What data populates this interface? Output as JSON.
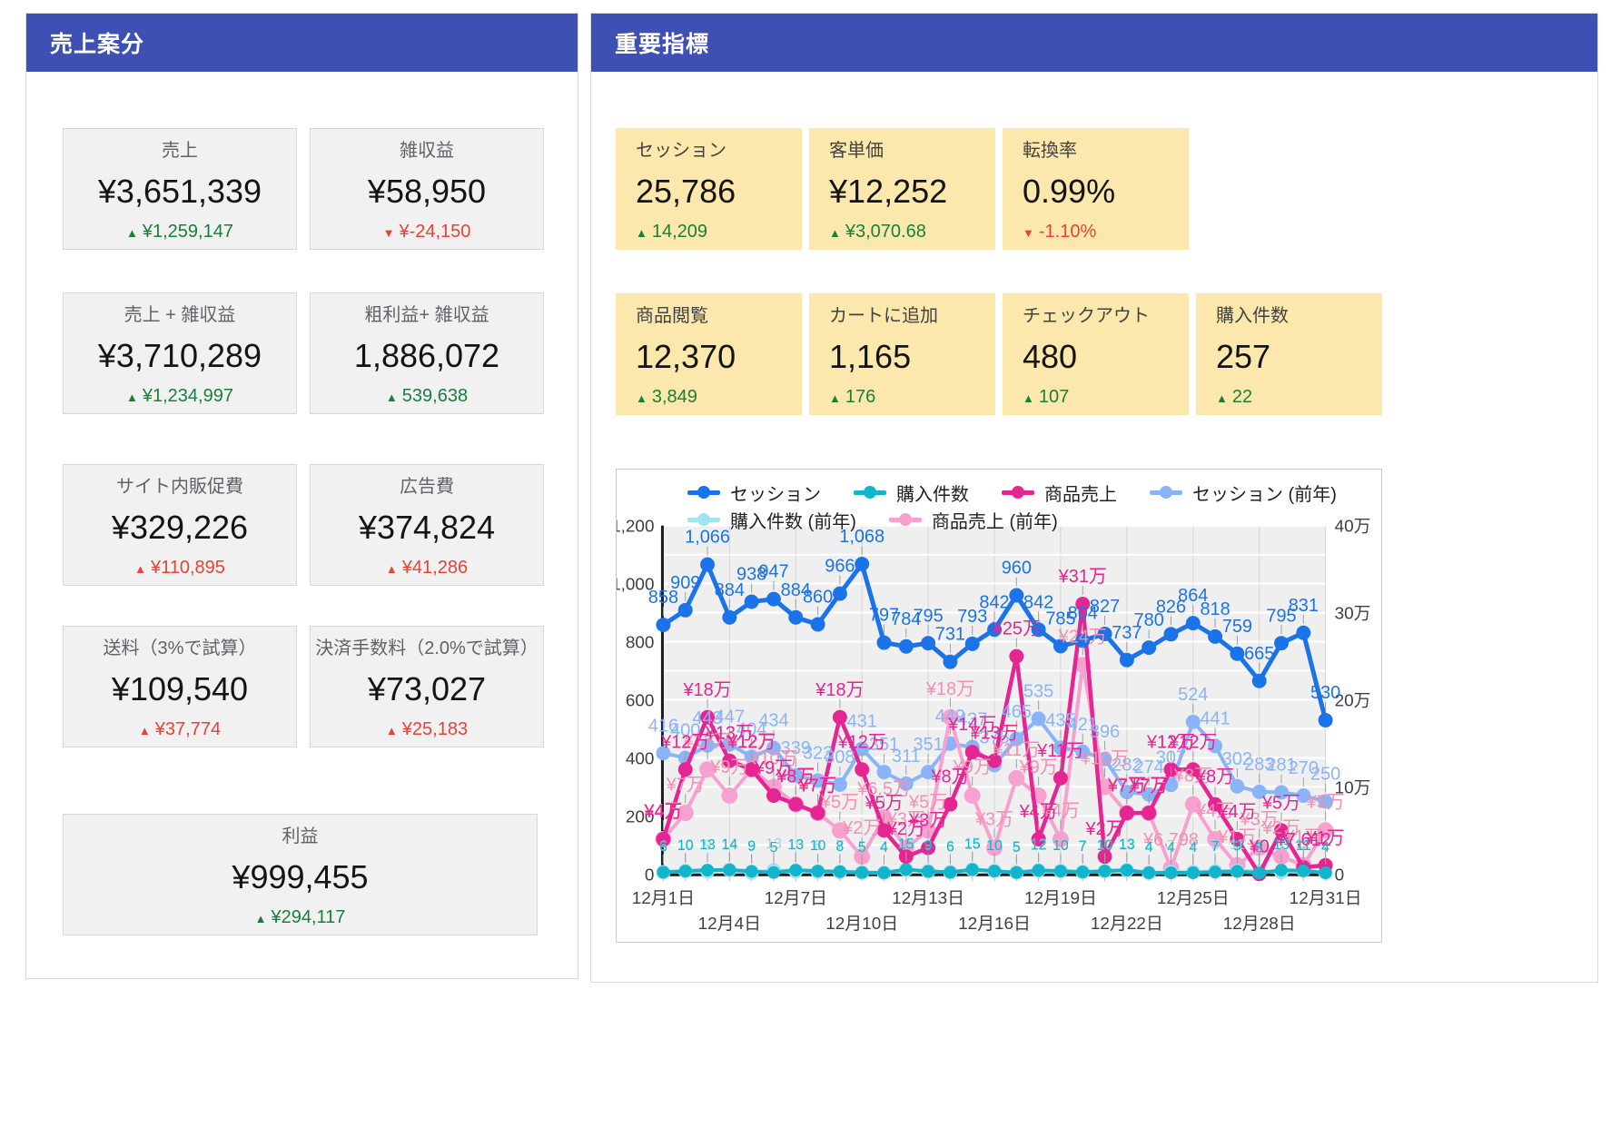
{
  "colors": {
    "header_bar": "#3e50b4",
    "delta_good": "#188038",
    "delta_bad": "#e94235",
    "card_gray_bg": "#f1f1f1",
    "card_yellow_bg": "#fce8ac"
  },
  "left_panel": {
    "title": "売上案分",
    "cards": [
      {
        "label": "売上",
        "value": "¥3,651,339",
        "delta": "¥1,259,147",
        "dir": "up",
        "tone": "good"
      },
      {
        "label": "雑収益",
        "value": "¥58,950",
        "delta": "¥-24,150",
        "dir": "down",
        "tone": "bad"
      },
      {
        "label": "売上 + 雑収益",
        "value": "¥3,710,289",
        "delta": "¥1,234,997",
        "dir": "up",
        "tone": "good"
      },
      {
        "label": "粗利益+ 雑収益",
        "value": "1,886,072",
        "delta": "539,638",
        "dir": "up",
        "tone": "good"
      },
      {
        "label": "サイト内販促費",
        "value": "¥329,226",
        "delta": "¥110,895",
        "dir": "up",
        "tone": "bad"
      },
      {
        "label": "広告費",
        "value": "¥374,824",
        "delta": "¥41,286",
        "dir": "up",
        "tone": "bad"
      },
      {
        "label": "送料（3%で試算）",
        "value": "¥109,540",
        "delta": "¥37,774",
        "dir": "up",
        "tone": "bad"
      },
      {
        "label": "決済手数料（2.0%で試算）",
        "value": "¥73,027",
        "delta": "¥25,183",
        "dir": "up",
        "tone": "bad"
      },
      {
        "label": "利益",
        "value": "¥999,455",
        "delta": "¥294,117",
        "dir": "up",
        "tone": "good"
      }
    ]
  },
  "right_panel": {
    "title": "重要指標",
    "kpi_row1": [
      {
        "label": "セッション",
        "value": "25,786",
        "delta": "14,209",
        "dir": "up",
        "tone": "good"
      },
      {
        "label": "客単価",
        "value": "¥12,252",
        "delta": "¥3,070.68",
        "dir": "up",
        "tone": "good"
      },
      {
        "label": "転換率",
        "value": "0.99%",
        "delta": "-1.10%",
        "dir": "down",
        "tone": "bad"
      }
    ],
    "kpi_row2": [
      {
        "label": "商品閲覧",
        "value": "12,370",
        "delta": "3,849",
        "dir": "up",
        "tone": "good"
      },
      {
        "label": "カートに追加",
        "value": "1,165",
        "delta": "176",
        "dir": "up",
        "tone": "good"
      },
      {
        "label": "チェックアウト",
        "value": "480",
        "delta": "107",
        "dir": "up",
        "tone": "good"
      },
      {
        "label": "購入件数",
        "value": "257",
        "delta": "22",
        "dir": "up",
        "tone": "good"
      }
    ]
  },
  "chart_data": {
    "type": "line",
    "n_points": 31,
    "x_tick_labels": [
      "12月1日",
      "12月4日",
      "12月7日",
      "12月10日",
      "12月13日",
      "12月16日",
      "12月19日",
      "12月22日",
      "12月25日",
      "12月28日",
      "12月31日"
    ],
    "y_left": {
      "min": 0,
      "max": 1200,
      "tick_labels": [
        "0",
        "200",
        "400",
        "600",
        "800",
        "1,000",
        "1,200"
      ]
    },
    "y_right": {
      "min": 0,
      "max": 400000,
      "tick_labels": [
        "0",
        "10万",
        "20万",
        "30万",
        "40万"
      ]
    },
    "grid": true,
    "legend_rows": [
      [
        0,
        1,
        2,
        3
      ],
      [
        4,
        5
      ]
    ],
    "series": [
      {
        "name": "セッション",
        "axis": "left",
        "color": "#1a73e8",
        "label_color": "#1a73e8",
        "values": [
          858,
          909,
          1066,
          884,
          938,
          947,
          884,
          860,
          966,
          1068,
          797,
          784,
          795,
          731,
          793,
          842,
          960,
          842,
          785,
          804,
          827,
          737,
          780,
          826,
          864,
          818,
          759,
          665,
          795,
          831,
          530
        ],
        "labels": [
          "858",
          "909",
          "1,066",
          "884",
          "938",
          "947",
          "884",
          "860",
          "966",
          "1,068",
          "797",
          "784",
          "795",
          "731",
          "793",
          "842",
          "960",
          "842",
          "785",
          "804",
          "827",
          "737",
          "780",
          "826",
          "864",
          "818",
          "759",
          "665",
          "795",
          "831",
          "530"
        ]
      },
      {
        "name": "購入件数",
        "axis": "left",
        "color": "#12b5cb",
        "label_color": "#12b5cb",
        "values": [
          6,
          10,
          13,
          14,
          9,
          5,
          13,
          10,
          8,
          5,
          4,
          15,
          9,
          6,
          15,
          10,
          5,
          12,
          10,
          7,
          10,
          13,
          4,
          4,
          4,
          7,
          9,
          3,
          13,
          11,
          4
        ],
        "labels": [
          "6",
          "10",
          "13",
          "14",
          "9",
          "5",
          "13",
          "10",
          "8",
          "5",
          "4",
          "15",
          "9",
          "6",
          "15",
          "10",
          "5",
          "12",
          "10",
          "7",
          "10",
          "13",
          "4",
          "4",
          "4",
          "7",
          "9",
          "3",
          "13",
          "11",
          "4"
        ]
      },
      {
        "name": "商品売上",
        "axis": "right",
        "color": "#e52592",
        "label_color": "#e52592",
        "values": [
          40000,
          120000,
          180000,
          130000,
          120000,
          90000,
          80000,
          70000,
          180000,
          120000,
          50000,
          20000,
          30000,
          80000,
          140000,
          130000,
          250000,
          40000,
          110000,
          310000,
          20000,
          70000,
          70000,
          120000,
          120000,
          80000,
          40000,
          0,
          50000,
          7612,
          10000
        ],
        "labels": [
          "¥4万",
          "¥12万",
          "¥18万",
          "¥13万",
          "¥12万",
          "¥9万",
          "¥8万",
          "¥7万",
          "¥18万",
          "¥12万",
          "¥5万",
          "¥2万",
          "¥3万",
          "¥8万",
          "¥14万",
          "¥13万",
          "¥25万",
          "¥4万",
          "¥11万",
          "¥31万",
          "¥2万",
          "¥7万",
          "¥7万",
          "¥12万",
          "¥12万",
          "¥8万",
          "¥4万",
          "¥0",
          "¥5万",
          "¥7,612",
          "¥1万"
        ]
      },
      {
        "name": "セッション (前年)",
        "axis": "left",
        "color": "#8ab4f8",
        "label_color": "#8ab4f8",
        "values": [
          416,
          400,
          443,
          447,
          404,
          434,
          339,
          322,
          308,
          431,
          351,
          311,
          351,
          449,
          437,
          375,
          465,
          535,
          435,
          421,
          396,
          282,
          274,
          307,
          524,
          441,
          302,
          283,
          281,
          270,
          250
        ],
        "labels": [
          "416",
          "400",
          "443",
          "447",
          "404",
          "434",
          "339",
          "322",
          "308",
          "431",
          "351",
          "311",
          "351",
          "449",
          "437",
          "375",
          "465",
          "535",
          "435",
          "421",
          "396",
          "282",
          "274",
          "307",
          "524",
          "441",
          "302",
          "283",
          "281",
          "270",
          "250"
        ]
      },
      {
        "name": "購入件数 (前年)",
        "axis": "left",
        "color": "#a0e4ef",
        "label_color": "#8ed7e4",
        "values": [
          6,
          10,
          9,
          14,
          5,
          13,
          10,
          8,
          7,
          5,
          4,
          15,
          9,
          6,
          15,
          10,
          5,
          12,
          10,
          7,
          10,
          13,
          4,
          7,
          7,
          9,
          11,
          9,
          7,
          12,
          4
        ],
        "labels": [
          "6",
          "10",
          "9",
          "14",
          "5",
          "13",
          "10",
          "8",
          "7",
          "5",
          "4",
          "15",
          "9",
          "6",
          "15",
          "10",
          "5",
          "12",
          "10",
          "7",
          "10",
          "13",
          "4",
          "7",
          "7",
          "9",
          "11",
          "9",
          "7",
          "12",
          "4"
        ]
      },
      {
        "name": "商品売上 (前年)",
        "axis": "right",
        "color": "#f8a1d0",
        "label_color": "#f48fb1",
        "values": [
          40000,
          70000,
          120000,
          90000,
          120000,
          100000,
          80000,
          70000,
          50000,
          20000,
          65000,
          30000,
          50000,
          180000,
          90000,
          30000,
          110000,
          90000,
          40000,
          240000,
          100000,
          70000,
          70000,
          6798,
          80000,
          40000,
          10000,
          30000,
          20000,
          10000,
          50000
        ],
        "labels": [
          "¥4万",
          "¥7万",
          "¥12万",
          "¥9万",
          "¥12万",
          "¥10万",
          "¥8万",
          "¥7万",
          "¥5万",
          "¥2万",
          "¥6.5万",
          "¥3万",
          "¥5万",
          "¥18万",
          "¥9万",
          "¥3万",
          "¥11万",
          "¥9万",
          "¥4万",
          "¥24万",
          "¥10万",
          "¥7万",
          "¥7万",
          "¥6,798",
          "¥8万",
          "¥4万",
          "¥1万",
          "¥3万",
          "¥2万",
          "¥1万",
          "¥5万"
        ]
      }
    ]
  }
}
